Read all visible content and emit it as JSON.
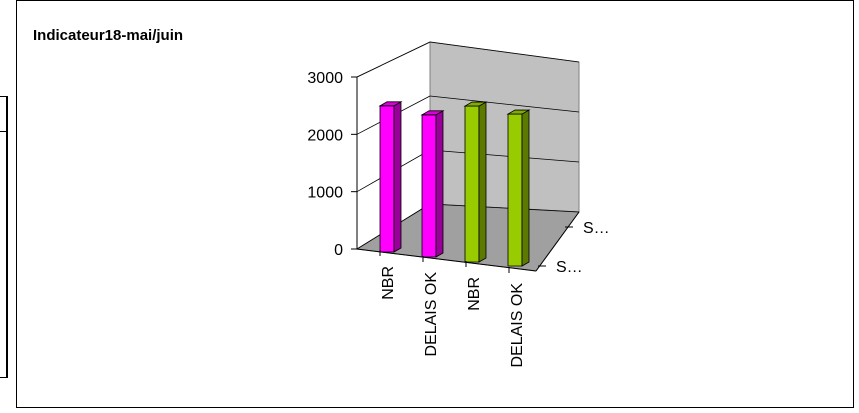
{
  "chart_data": {
    "type": "bar",
    "title": "Indicateur18-mai/juin",
    "categories": [
      "NBR",
      "DELAIS OK",
      "NBR",
      "DELAIS OK"
    ],
    "series": [
      {
        "name": "S…",
        "color": "#ff00ff",
        "values": [
          2550,
          2480,
          0,
          0
        ]
      },
      {
        "name": "S…",
        "color": "#99cc00",
        "values": [
          0,
          0,
          2720,
          2650
        ]
      }
    ],
    "depth_labels": [
      "S…",
      "S…"
    ],
    "yticks": [
      "0",
      "1000",
      "2000",
      "3000"
    ],
    "ylim": [
      0,
      3000
    ],
    "grid": true,
    "xlabel": "",
    "ylabel": ""
  }
}
